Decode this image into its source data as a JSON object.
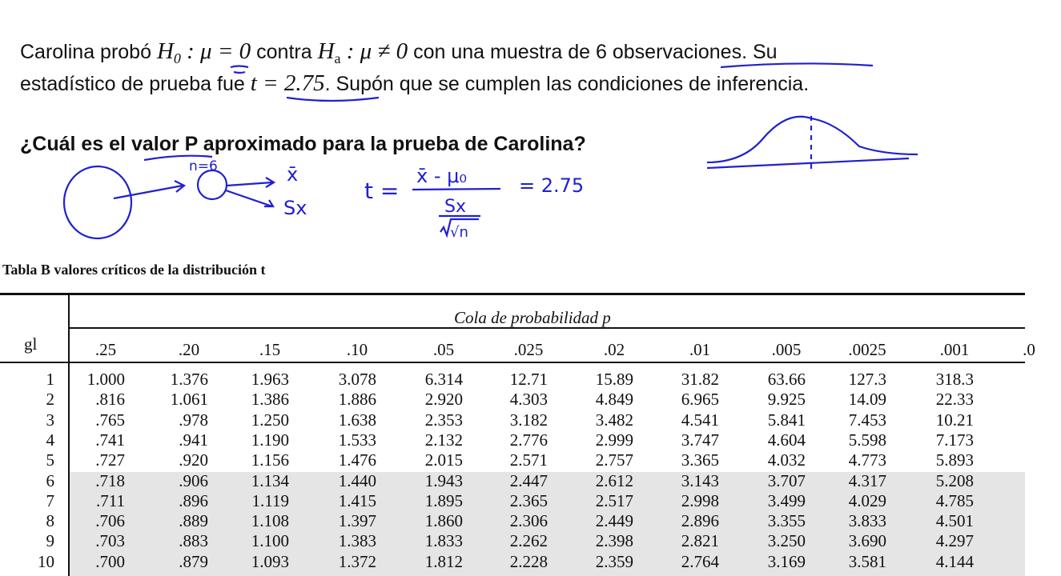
{
  "problem": {
    "line1": [
      "Carolina probó ",
      "H",
      "0",
      " : μ = 0",
      " contra ",
      "H",
      "a",
      " : μ ≠  0",
      " con una muestra de 6 observaciones. Su"
    ],
    "line2": [
      "estadístico de prueba fue ",
      "t = 2.75",
      ". Supón que se cumplen las condiciones de inferencia."
    ],
    "question": "¿Cuál es el valor P aproximado para la prueba de Carolina?"
  },
  "handwriting": {
    "n": "n=6",
    "xbar": "x̄",
    "sx": "Sx",
    "formula_t": "t =",
    "formula_num": "x̄ - μ₀",
    "formula_den_top": "Sx",
    "formula_den_bot": "√n",
    "formula_result": "= 2.75",
    "ink_color": "#2020d0"
  },
  "table": {
    "caption": "Tabla B  valores críticos de la distribución t",
    "super_header": "Cola de probabilidad  p",
    "row_header": "gl",
    "columns": [
      ".25",
      ".20",
      ".15",
      ".10",
      ".05",
      ".025",
      ".02",
      ".01",
      ".005",
      ".0025",
      ".001",
      ".0"
    ],
    "rows": [
      {
        "gl": "1",
        "v": [
          "1.000",
          "1.376",
          "1.963",
          "3.078",
          "6.314",
          "12.71",
          "15.89",
          "31.82",
          "63.66",
          "127.3",
          "318.3"
        ]
      },
      {
        "gl": "2",
        "v": [
          ".816",
          "1.061",
          "1.386",
          "1.886",
          "2.920",
          "4.303",
          "4.849",
          "6.965",
          "9.925",
          "14.09",
          "22.33"
        ]
      },
      {
        "gl": "3",
        "v": [
          ".765",
          ".978",
          "1.250",
          "1.638",
          "2.353",
          "3.182",
          "3.482",
          "4.541",
          "5.841",
          "7.453",
          "10.21"
        ]
      },
      {
        "gl": "4",
        "v": [
          ".741",
          ".941",
          "1.190",
          "1.533",
          "2.132",
          "2.776",
          "2.999",
          "3.747",
          "4.604",
          "5.598",
          "7.173"
        ]
      },
      {
        "gl": "5",
        "v": [
          ".727",
          ".920",
          "1.156",
          "1.476",
          "2.015",
          "2.571",
          "2.757",
          "3.365",
          "4.032",
          "4.773",
          "5.893"
        ]
      },
      {
        "gl": "6",
        "v": [
          ".718",
          ".906",
          "1.134",
          "1.440",
          "1.943",
          "2.447",
          "2.612",
          "3.143",
          "3.707",
          "4.317",
          "5.208"
        ]
      },
      {
        "gl": "7",
        "v": [
          ".711",
          ".896",
          "1.119",
          "1.415",
          "1.895",
          "2.365",
          "2.517",
          "2.998",
          "3.499",
          "4.029",
          "4.785"
        ]
      },
      {
        "gl": "8",
        "v": [
          ".706",
          ".889",
          "1.108",
          "1.397",
          "1.860",
          "2.306",
          "2.449",
          "2.896",
          "3.355",
          "3.833",
          "4.501"
        ]
      },
      {
        "gl": "9",
        "v": [
          ".703",
          ".883",
          "1.100",
          "1.383",
          "1.833",
          "2.262",
          "2.398",
          "2.821",
          "3.250",
          "3.690",
          "4.297"
        ]
      },
      {
        "gl": "10",
        "v": [
          ".700",
          ".879",
          "1.093",
          "1.372",
          "1.812",
          "2.228",
          "2.359",
          "2.764",
          "3.169",
          "3.581",
          "4.144"
        ]
      }
    ]
  }
}
